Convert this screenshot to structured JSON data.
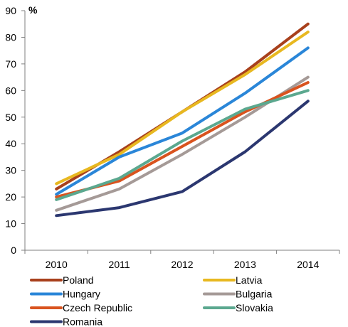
{
  "chart_data": {
    "type": "line",
    "title": "",
    "xlabel": "",
    "ylabel": "%",
    "ylim": [
      0,
      90
    ],
    "yticks": [
      0,
      10,
      20,
      30,
      40,
      50,
      60,
      70,
      80,
      90
    ],
    "grid": false,
    "legend_position": "bottom",
    "categories": [
      "2010",
      "2011",
      "2012",
      "2013",
      "2014"
    ],
    "series": [
      {
        "name": "Poland",
        "color": "#a8401c",
        "values": [
          23,
          37,
          52,
          67,
          85
        ]
      },
      {
        "name": "Latvia",
        "color": "#e8b820",
        "values": [
          25,
          36,
          52,
          66,
          82
        ]
      },
      {
        "name": "Hungary",
        "color": "#2a86d8",
        "values": [
          21,
          35,
          44,
          59,
          76
        ]
      },
      {
        "name": "Bulgaria",
        "color": "#a59a97",
        "values": [
          15,
          23,
          36,
          50,
          65
        ]
      },
      {
        "name": "Czech Republic",
        "color": "#d9531e",
        "values": [
          20,
          26,
          39,
          52,
          63
        ]
      },
      {
        "name": "Slovakia",
        "color": "#5ba88f",
        "values": [
          19,
          27,
          41,
          53,
          60
        ]
      },
      {
        "name": "Romania",
        "color": "#2b3770",
        "values": [
          13,
          16,
          22,
          37,
          56
        ]
      }
    ]
  }
}
